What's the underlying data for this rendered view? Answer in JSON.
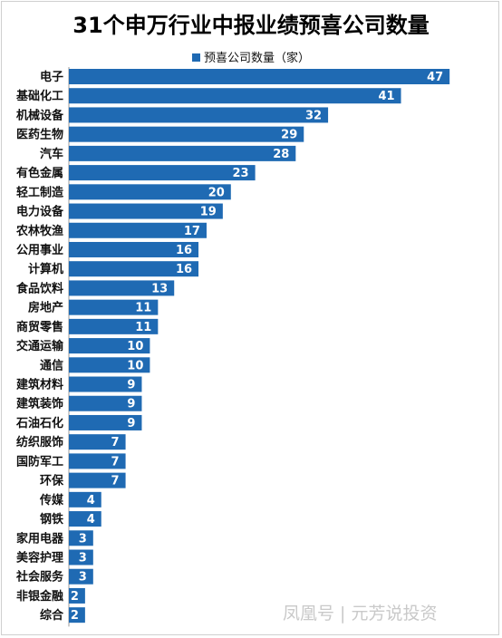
{
  "watermark": "凤凰号 | 元芳说投资",
  "chart_data": {
    "type": "bar",
    "orientation": "horizontal",
    "title": "31个申万行业中报业绩预喜公司数量",
    "legend": "预喜公司数量（家）",
    "legend_position": "top",
    "bar_color": "#1f6ab3",
    "xlim": [
      0,
      50
    ],
    "grid": false,
    "categories": [
      "电子",
      "基础化工",
      "机械设备",
      "医药生物",
      "汽车",
      "有色金属",
      "轻工制造",
      "电力设备",
      "农林牧渔",
      "公用事业",
      "计算机",
      "食品饮料",
      "房地产",
      "商贸零售",
      "交通运输",
      "通信",
      "建筑材料",
      "建筑装饰",
      "石油石化",
      "纺织服饰",
      "国防军工",
      "环保",
      "传媒",
      "钢铁",
      "家用电器",
      "美容护理",
      "社会服务",
      "非银金融",
      "综合"
    ],
    "series": [
      {
        "name": "预喜公司数量（家）",
        "values": [
          47,
          41,
          32,
          29,
          28,
          23,
          20,
          19,
          17,
          16,
          16,
          13,
          11,
          11,
          10,
          10,
          9,
          9,
          9,
          7,
          7,
          7,
          4,
          4,
          3,
          3,
          3,
          2,
          2
        ]
      }
    ]
  }
}
